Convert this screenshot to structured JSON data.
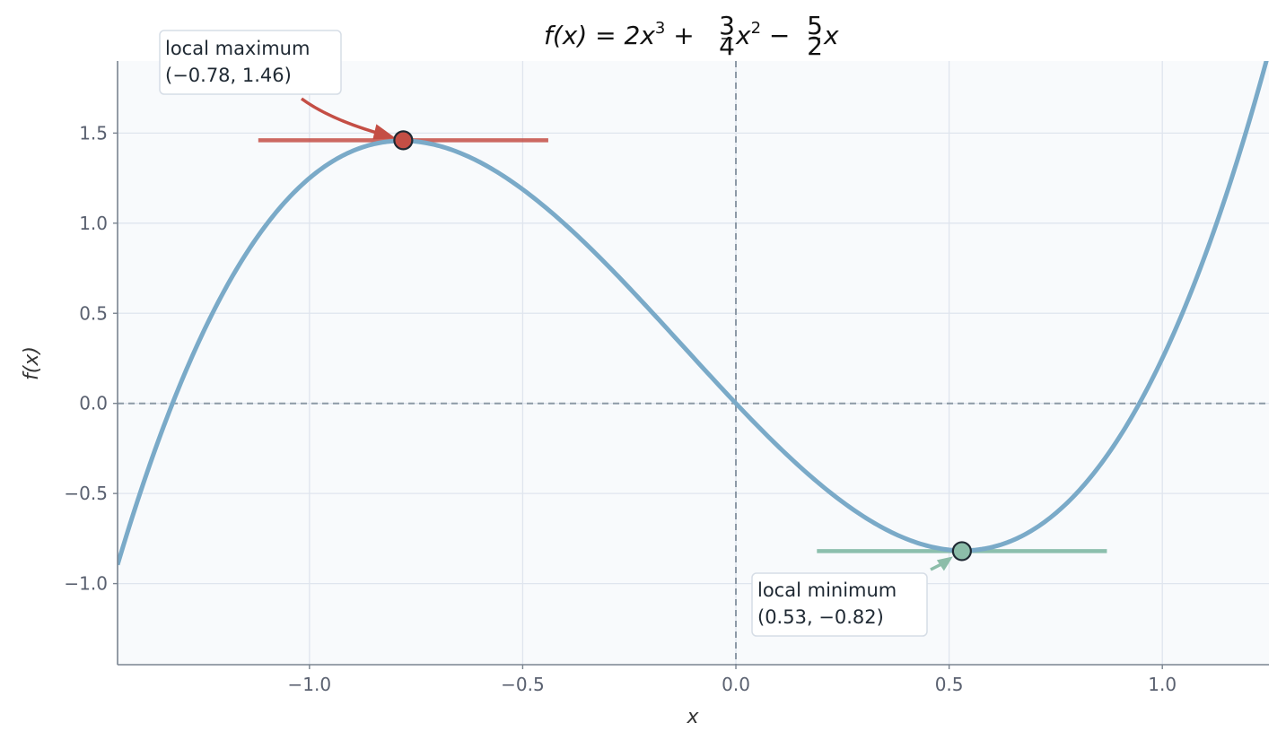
{
  "chart_data": {
    "type": "line",
    "title": "f(x) = 2x³ + ¾x² − ⁵⁄₂x",
    "title_parts": {
      "lhs": "f(x) = 2x",
      "p1": "3",
      "plus": " + ",
      "frac1_num": "3",
      "frac1_den": "4",
      "x2": "x",
      "p2": "2",
      "minus": " − ",
      "frac2_num": "5",
      "frac2_den": "2",
      "x1": "x"
    },
    "xlabel": "x",
    "ylabel": "f(x)",
    "xlim": [
      -1.45,
      1.25
    ],
    "ylim": [
      -1.45,
      1.9
    ],
    "x_ticks": [
      -1.0,
      -0.5,
      0.0,
      0.5,
      1.0
    ],
    "x_tick_labels": [
      "−1.0",
      "−0.5",
      "0.0",
      "0.5",
      "1.0"
    ],
    "y_ticks": [
      -1.0,
      -0.5,
      0.0,
      0.5,
      1.0,
      1.5
    ],
    "y_tick_labels": [
      "−1.0",
      "−0.5",
      "0.0",
      "0.5",
      "1.0",
      "1.5"
    ],
    "grid": true,
    "function": {
      "a3": 2,
      "a2": 0.75,
      "a1": -2.5,
      "a0": 0
    },
    "curve_x_range": [
      -1.45,
      1.25
    ],
    "reference_lines": {
      "x": 0,
      "y": 0
    },
    "extrema": [
      {
        "kind": "max",
        "x": -0.78,
        "y": 1.46,
        "tangent_x": [
          -1.12,
          -0.44
        ],
        "label_line1": "local maximum",
        "label_line2": "(−0.78, 1.46)",
        "color": "#c44e45"
      },
      {
        "kind": "min",
        "x": 0.53,
        "y": -0.82,
        "tangent_x": [
          0.19,
          0.87
        ],
        "label_line1": "local minimum",
        "label_line2": "(0.53, −0.82)",
        "color": "#7fb8a4"
      }
    ],
    "colors": {
      "curve": "#7aaac8",
      "plot_bg": "#f8fafc",
      "grid": "#dfe5ee",
      "ref_line": "#8c99a6",
      "axis": "#7a8490",
      "max_marker": "#c44e45",
      "min_marker": "#8cbda9"
    }
  }
}
